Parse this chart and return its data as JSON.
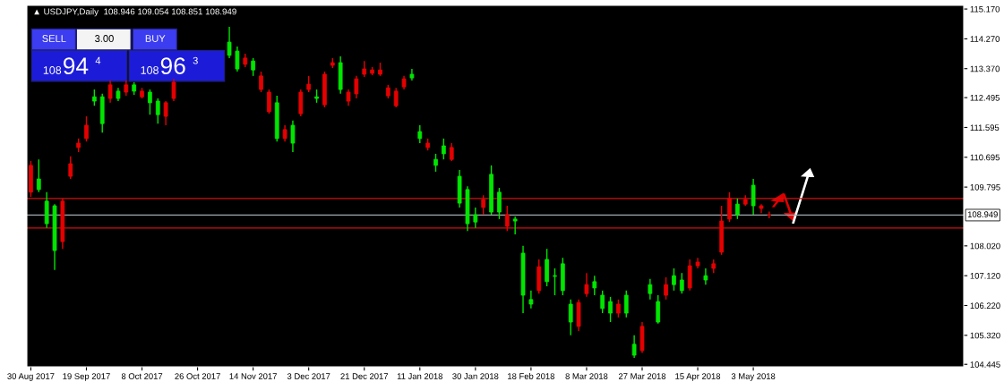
{
  "chart_data": {
    "type": "candlestick",
    "title": "▲ USDJPY,Daily",
    "subtitle": "108.946 109.054 108.851 108.949",
    "categories": [
      "30 Aug 2017",
      null,
      null,
      null,
      null,
      null,
      null,
      "19 Sep 2017",
      null,
      null,
      null,
      null,
      null,
      null,
      "8 Oct 2017",
      null,
      null,
      null,
      null,
      null,
      null,
      "26 Oct 2017",
      null,
      null,
      null,
      null,
      null,
      null,
      "14 Nov 2017",
      null,
      null,
      null,
      null,
      null,
      null,
      "3 Dec 2017",
      null,
      null,
      null,
      null,
      null,
      null,
      "21 Dec 2017",
      null,
      null,
      null,
      null,
      null,
      null,
      "11 Jan 2018",
      null,
      null,
      null,
      null,
      null,
      null,
      "30 Jan 2018",
      null,
      null,
      null,
      null,
      null,
      null,
      "18 Feb 2018",
      null,
      null,
      null,
      null,
      null,
      null,
      "8 Mar 2018",
      null,
      null,
      null,
      null,
      null,
      null,
      "27 Mar 2018",
      null,
      null,
      null,
      null,
      null,
      null,
      "15 Apr 2018",
      null,
      null,
      null,
      null,
      null,
      null,
      "3 May 2018",
      null,
      null,
      null,
      null,
      null,
      null,
      null,
      null,
      null,
      null,
      null,
      null,
      null,
      null,
      null,
      null,
      null,
      null,
      null,
      null,
      null,
      null,
      null,
      null,
      null,
      null
    ],
    "ohlc": [
      [
        109.64,
        110.58,
        109.5,
        110.45
      ],
      [
        110.04,
        110.63,
        109.64,
        109.72
      ],
      [
        109.37,
        109.64,
        108.56,
        108.69
      ],
      [
        109.23,
        109.28,
        107.29,
        107.88
      ],
      [
        108.15,
        109.45,
        107.93,
        109.37
      ],
      [
        110.12,
        110.72,
        110.04,
        110.5
      ],
      [
        110.99,
        111.26,
        110.85,
        111.12
      ],
      [
        111.26,
        111.93,
        111.17,
        111.66
      ],
      [
        112.52,
        112.74,
        112.25,
        112.39
      ],
      [
        112.52,
        112.61,
        111.44,
        111.71
      ],
      [
        112.47,
        113.01,
        112.34,
        112.88
      ],
      [
        112.69,
        112.79,
        112.39,
        112.47
      ],
      [
        112.66,
        113.01,
        112.55,
        112.88
      ],
      [
        112.88,
        112.96,
        112.58,
        112.69
      ],
      [
        112.52,
        112.79,
        112.47,
        112.69
      ],
      [
        112.66,
        112.74,
        111.98,
        112.34
      ],
      [
        112.39,
        112.47,
        111.71,
        111.98
      ],
      [
        111.93,
        112.39,
        111.66,
        112.34
      ],
      [
        112.47,
        113.06,
        112.39,
        112.96
      ],
      null,
      null,
      null,
      null,
      null,
      null,
      [
        114.17,
        114.63,
        113.69,
        113.77
      ],
      [
        113.9,
        114.04,
        113.28,
        113.36
      ],
      [
        113.5,
        113.82,
        113.42,
        113.69
      ],
      [
        113.6,
        113.69,
        113.15,
        113.33
      ],
      [
        112.74,
        113.28,
        112.66,
        113.15
      ],
      [
        112.07,
        112.74,
        112.01,
        112.66
      ],
      [
        112.34,
        112.55,
        111.17,
        111.26
      ],
      [
        111.26,
        111.66,
        111.17,
        111.53
      ],
      [
        111.66,
        111.8,
        110.85,
        111.12
      ],
      [
        112.01,
        112.74,
        111.93,
        112.66
      ],
      [
        112.74,
        113.15,
        112.66,
        112.9
      ],
      [
        112.52,
        112.74,
        112.34,
        112.47
      ],
      [
        112.28,
        113.28,
        112.2,
        113.2
      ],
      [
        113.47,
        113.69,
        113.39,
        113.55
      ],
      [
        113.55,
        113.74,
        112.61,
        112.74
      ],
      [
        112.39,
        112.74,
        112.25,
        112.66
      ],
      [
        112.61,
        113.15,
        112.47,
        113.06
      ],
      [
        113.2,
        113.6,
        113.12,
        113.36
      ],
      [
        113.23,
        113.42,
        113.17,
        113.33
      ],
      [
        113.2,
        113.55,
        113.15,
        113.33
      ],
      [
        112.55,
        112.88,
        112.47,
        112.79
      ],
      [
        112.25,
        112.79,
        112.2,
        112.69
      ],
      [
        112.82,
        113.15,
        112.74,
        113.06
      ],
      [
        113.2,
        113.36,
        113.01,
        113.09
      ],
      [
        111.47,
        111.66,
        111.12,
        111.26
      ],
      [
        110.99,
        111.26,
        110.9,
        111.12
      ],
      [
        110.63,
        110.8,
        110.26,
        110.45
      ],
      [
        111.04,
        111.26,
        110.63,
        110.8
      ],
      [
        110.63,
        111.12,
        110.58,
        110.99
      ],
      [
        110.12,
        110.31,
        109.18,
        109.31
      ],
      [
        109.72,
        109.82,
        108.47,
        108.69
      ],
      [
        108.96,
        109.18,
        108.56,
        108.74
      ],
      [
        109.18,
        109.55,
        108.96,
        109.42
      ],
      [
        110.18,
        110.45,
        108.96,
        109.04
      ],
      [
        109.64,
        109.77,
        108.83,
        109.04
      ],
      [
        108.61,
        109.23,
        108.47,
        108.96
      ],
      [
        108.83,
        108.91,
        108.37,
        108.77
      ],
      [
        107.8,
        108.02,
        105.99,
        106.53
      ],
      [
        106.4,
        106.67,
        106.13,
        106.26
      ],
      [
        106.67,
        107.61,
        106.58,
        107.39
      ],
      [
        107.61,
        107.93,
        106.8,
        106.94
      ],
      [
        107.12,
        107.34,
        106.53,
        107.1
      ],
      [
        107.48,
        107.66,
        106.53,
        106.67
      ],
      [
        106.26,
        106.4,
        105.32,
        105.72
      ],
      [
        105.59,
        106.4,
        105.45,
        106.31
      ],
      [
        106.58,
        107.2,
        106.48,
        106.85
      ],
      [
        106.94,
        107.12,
        106.53,
        106.75
      ],
      [
        106.53,
        106.67,
        105.99,
        106.13
      ],
      [
        106.34,
        106.48,
        105.72,
        105.99
      ],
      [
        105.99,
        106.4,
        105.86,
        106.26
      ],
      [
        106.53,
        106.67,
        105.86,
        105.99
      ],
      [
        105.05,
        105.32,
        104.64,
        104.72
      ],
      [
        104.86,
        105.72,
        104.79,
        105.59
      ],
      [
        106.85,
        107.02,
        106.4,
        106.58
      ],
      [
        106.34,
        106.53,
        105.67,
        105.72
      ],
      [
        106.53,
        107.07,
        106.4,
        106.85
      ],
      [
        107.12,
        107.34,
        106.67,
        106.85
      ],
      [
        106.99,
        107.2,
        106.58,
        106.67
      ],
      [
        106.75,
        107.61,
        106.67,
        107.42
      ],
      [
        107.42,
        107.66,
        107.34,
        107.53
      ],
      [
        107.12,
        107.34,
        106.85,
        106.99
      ],
      [
        107.34,
        107.61,
        107.2,
        107.48
      ],
      [
        107.83,
        109.23,
        107.75,
        108.77
      ],
      [
        108.83,
        109.64,
        108.74,
        109.45
      ],
      [
        109.28,
        109.45,
        108.83,
        108.96
      ],
      [
        109.28,
        109.55,
        109.23,
        109.42
      ],
      [
        109.85,
        110.04,
        108.96,
        109.23
      ],
      [
        109.15,
        109.28,
        109.01,
        109.23
      ],
      [
        108.946,
        109.054,
        108.851,
        108.949
      ],
      null,
      null,
      null,
      null,
      null,
      null,
      null,
      null,
      null,
      null,
      null,
      null,
      null,
      null,
      null,
      null,
      null,
      null,
      null,
      null,
      null,
      null,
      null,
      null
    ],
    "colors": [
      "#e60000",
      "#00e600",
      "#00e600",
      "#00e600",
      "#e60000",
      "#e60000",
      "#e60000",
      "#e60000",
      "#00e600",
      "#00e600",
      "#e60000",
      "#00e600",
      "#e60000",
      "#00e600",
      "#e60000",
      "#00e600",
      "#00e600",
      "#e60000",
      "#e60000",
      null,
      null,
      null,
      null,
      null,
      null,
      "#00e600",
      "#00e600",
      "#e60000",
      "#00e600",
      "#e60000",
      "#e60000",
      "#00e600",
      "#e60000",
      "#00e600",
      "#e60000",
      "#e60000",
      "#00e600",
      "#e60000",
      "#e60000",
      "#00e600",
      "#e60000",
      "#e60000",
      "#e60000",
      "#e60000",
      "#e60000",
      "#e60000",
      "#e60000",
      "#e60000",
      "#00e600",
      "#00e600",
      "#e60000",
      "#00e600",
      "#00e600",
      "#e60000",
      "#00e600",
      "#00e600",
      "#00e600",
      "#e60000",
      "#00e600",
      "#00e600",
      "#e60000",
      "#00e600",
      "#00e600",
      "#00e600",
      "#e60000",
      "#00e600",
      "#00e600",
      "#00e600",
      "#00e600",
      "#e60000",
      "#e60000",
      "#00e600",
      "#00e600",
      "#00e600",
      "#e60000",
      "#00e600",
      "#00e600",
      "#e60000",
      "#00e600",
      "#00e600",
      "#e60000",
      "#00e600",
      "#00e600",
      "#e60000",
      "#e60000",
      "#00e600",
      "#e60000",
      "#e60000",
      "#e60000",
      "#00e600",
      "#e60000",
      "#00e600",
      "#e60000",
      "#e60000",
      null,
      null,
      null,
      null,
      null,
      null,
      null,
      null,
      null,
      null,
      null,
      null,
      null,
      null,
      null,
      null,
      null,
      null,
      null,
      null,
      null,
      null,
      null,
      null
    ],
    "ylim": [
      104.37,
      115.28
    ],
    "yticks": [
      {
        "value": 104.445,
        "label": "104.445"
      },
      {
        "value": 105.32,
        "label": "105.320"
      },
      {
        "value": 106.22,
        "label": "106.220"
      },
      {
        "value": 107.12,
        "label": "107.120"
      },
      {
        "value": 108.02,
        "label": "108.020"
      },
      {
        "value": 109.795,
        "label": "109.795"
      },
      {
        "value": 110.695,
        "label": "110.695"
      },
      {
        "value": 111.595,
        "label": "111.595"
      },
      {
        "value": 112.495,
        "label": "112.495"
      },
      {
        "value": 113.37,
        "label": "113.370"
      },
      {
        "value": 114.27,
        "label": "114.270"
      },
      {
        "value": 115.17,
        "label": "115.170"
      }
    ],
    "ref_lines": [
      {
        "axis": "y",
        "value": 108.949,
        "label": "108.949",
        "color": "#a0a8b0"
      },
      {
        "axis": "y",
        "value": 109.45,
        "color": "#d01010"
      },
      {
        "axis": "y",
        "value": 108.56,
        "color": "#d01010"
      }
    ],
    "annotations": [
      "SELL",
      "3.00",
      "BUY",
      "108",
      "94",
      "4",
      "108",
      "96",
      "3"
    ],
    "grid": false
  }
}
